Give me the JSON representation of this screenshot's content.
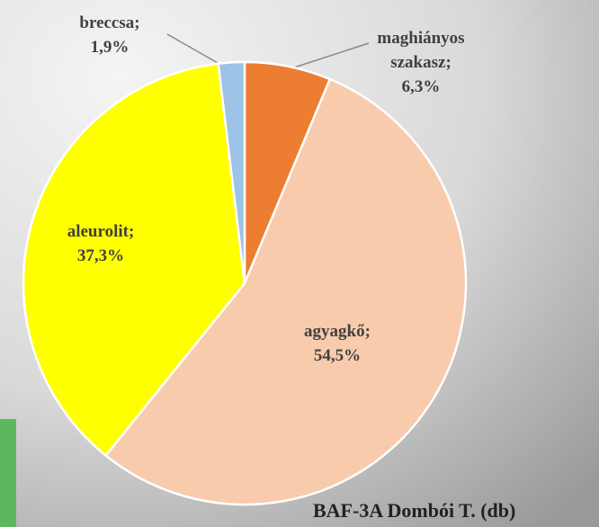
{
  "chart_data": {
    "type": "pie",
    "title": "BAF-3A Dombói T. (db)",
    "categories": [
      "maghiányos szakasz;",
      "agyagkő;",
      "aleurolit;",
      "breccsa;"
    ],
    "values": [
      6.3,
      54.5,
      37.3,
      1.9
    ],
    "value_labels": [
      "6,3%",
      "54,5%",
      "37,3%",
      "1,9%"
    ],
    "colors": [
      "#ed7d31",
      "#f8cbad",
      "#ffff00",
      "#9dc3e6"
    ]
  }
}
